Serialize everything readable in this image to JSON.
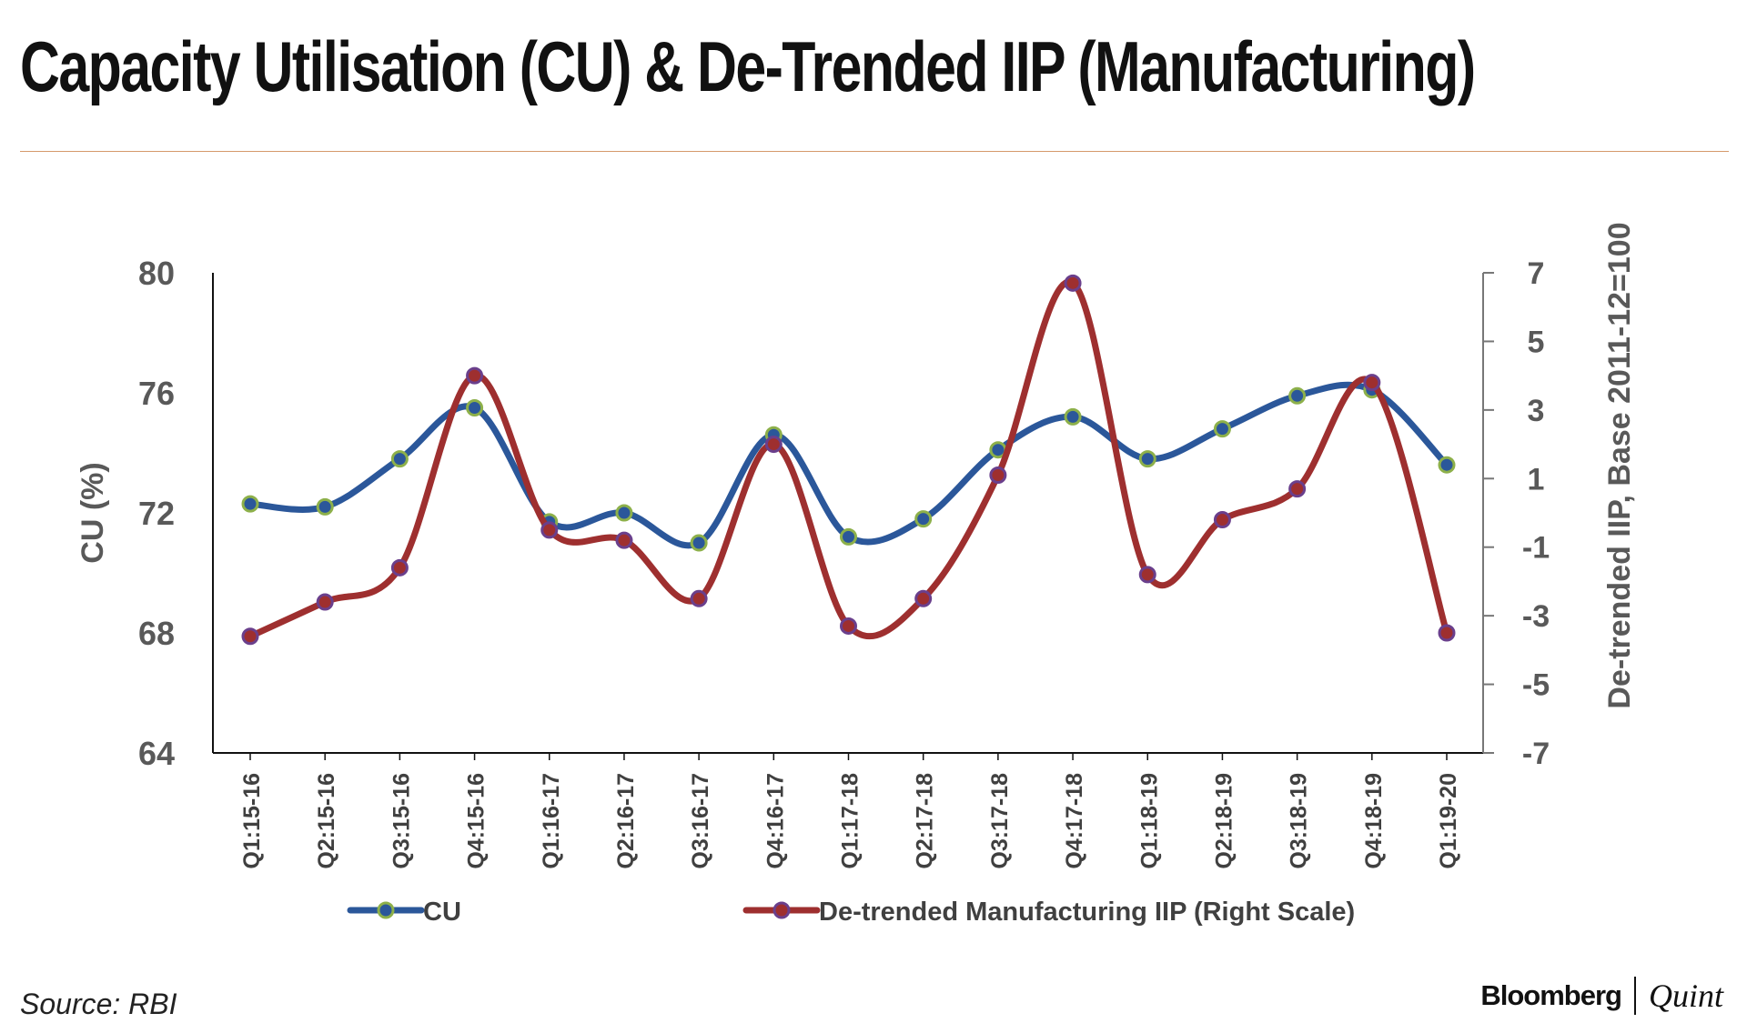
{
  "header": {
    "title": "Capacity Utilisation (CU) & De-Trended IIP (Manufacturing)"
  },
  "footer": {
    "source": "Source: RBI",
    "brand_primary": "Bloomberg",
    "brand_secondary": "Quint"
  },
  "chart_data": {
    "type": "line",
    "title": "Capacity Utilisation (CU) & De-Trended IIP (Manufacturing)",
    "categories": [
      "Q1:15-16",
      "Q2:15-16",
      "Q3:15-16",
      "Q4:15-16",
      "Q1:16-17",
      "Q2:16-17",
      "Q3:16-17",
      "Q4:16-17",
      "Q1:17-18",
      "Q2:17-18",
      "Q3:17-18",
      "Q4:17-18",
      "Q1:18-19",
      "Q2:18-19",
      "Q3:18-19",
      "Q4:18-19",
      "Q1:19-20"
    ],
    "y_left": {
      "label": "CU (%)",
      "min": 64,
      "max": 80,
      "ticks": [
        "80",
        "76",
        "72",
        "68",
        "64"
      ],
      "tick_values": [
        80,
        76,
        72,
        68,
        64
      ]
    },
    "y_right": {
      "label": "De-trended IIP, Base 2011-12=100",
      "min": -7,
      "max": 7,
      "ticks": [
        "7",
        "5",
        "3",
        "1",
        "-1",
        "-3",
        "-5",
        "-7"
      ],
      "tick_values": [
        7,
        5,
        3,
        1,
        -1,
        -3,
        -5,
        -7
      ]
    },
    "series": [
      {
        "name": "CU",
        "axis": "left",
        "color": "#2b579a",
        "marker_color": "#8db04a",
        "values": [
          72.3,
          72.2,
          73.8,
          75.5,
          71.7,
          72.0,
          71.0,
          74.6,
          71.2,
          71.8,
          74.1,
          75.2,
          73.8,
          74.8,
          75.9,
          76.1,
          73.6
        ]
      },
      {
        "name": "De-trended Manufacturing IIP (Right Scale)",
        "axis": "right",
        "color": "#9e2f2f",
        "marker_color": "#6a3f8c",
        "values": [
          -3.6,
          -2.6,
          -1.6,
          4.0,
          -0.5,
          -0.8,
          -2.5,
          2.0,
          -3.3,
          -2.5,
          1.1,
          6.7,
          -1.8,
          -0.2,
          0.7,
          3.8,
          -3.5
        ]
      }
    ]
  }
}
